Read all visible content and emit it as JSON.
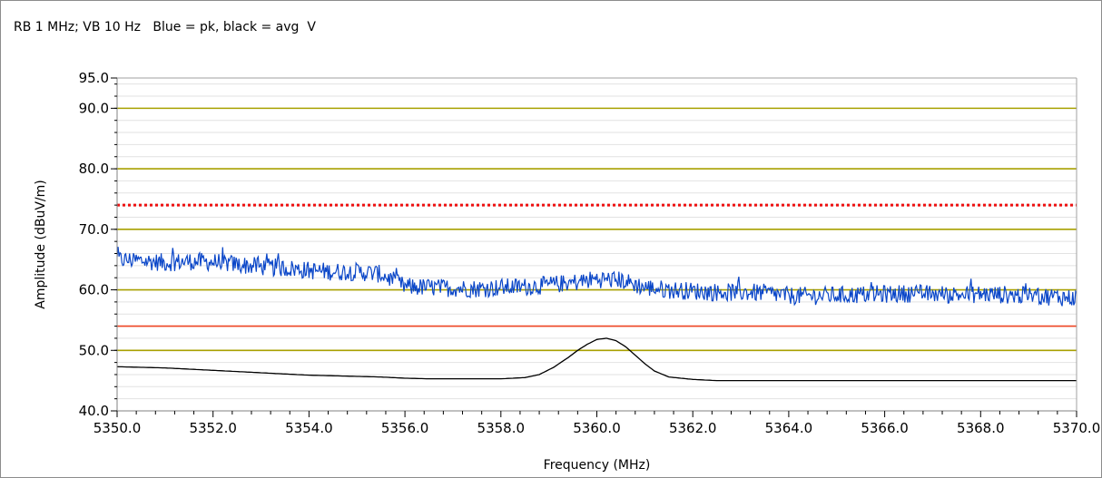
{
  "title": "RB 1 MHz; VB 10 Hz   Blue = pk, black = avg  V",
  "colors": {
    "peak": "#0a46c8",
    "average": "#000000",
    "grid_major": "#a8a000",
    "grid_minor": "#e2e2e2",
    "limit_peak": "#ee1111",
    "limit_avg": "#ee4422"
  },
  "chart_data": {
    "type": "line",
    "xlabel": "Frequency (MHz)",
    "ylabel": "Amplitude (dBuV/m)",
    "xlim": [
      5350.0,
      5370.0
    ],
    "ylim": [
      40.0,
      95.0
    ],
    "x_ticks": [
      "5350.0",
      "5352.0",
      "5354.0",
      "5356.0",
      "5358.0",
      "5360.0",
      "5362.0",
      "5364.0",
      "5366.0",
      "5368.0",
      "5370.0"
    ],
    "y_ticks": [
      "40.0",
      "50.0",
      "60.0",
      "70.0",
      "80.0",
      "90.0",
      "95.0"
    ],
    "reference_lines": [
      {
        "y": 74.0,
        "style": "dotted",
        "color": "#ee1111"
      },
      {
        "y": 54.0,
        "style": "solid",
        "color": "#ee4422"
      }
    ],
    "series": [
      {
        "color": "#0a46c8",
        "x": [
          5350.0,
          5350.5,
          5351.0,
          5351.5,
          5352.0,
          5352.5,
          5353.0,
          5353.5,
          5354.0,
          5354.5,
          5355.0,
          5355.5,
          5356.0,
          5356.5,
          5357.0,
          5357.5,
          5358.0,
          5358.5,
          5359.0,
          5359.5,
          5360.0,
          5360.5,
          5361.0,
          5361.5,
          5362.0,
          5362.5,
          5363.0,
          5363.5,
          5364.0,
          5364.5,
          5365.0,
          5365.5,
          5366.0,
          5366.5,
          5367.0,
          5367.5,
          5368.0,
          5368.5,
          5369.0,
          5369.5,
          5370.0
        ],
        "y": [
          65.0,
          64.8,
          64.5,
          64.7,
          64.6,
          64.2,
          63.8,
          63.6,
          63.2,
          63.0,
          63.0,
          62.6,
          60.5,
          60.4,
          60.3,
          60.2,
          60.4,
          60.5,
          60.8,
          61.2,
          61.8,
          61.6,
          60.4,
          60.0,
          59.8,
          59.6,
          59.6,
          59.5,
          59.0,
          59.0,
          59.1,
          59.2,
          59.3,
          59.4,
          59.3,
          59.2,
          59.3,
          59.2,
          59.0,
          58.9,
          58.6
        ],
        "noise_amplitude": 1.5
      },
      {
        "color": "#000000",
        "x": [
          5350.0,
          5350.5,
          5351.0,
          5351.5,
          5352.0,
          5352.5,
          5353.0,
          5353.5,
          5354.0,
          5354.5,
          5355.0,
          5355.5,
          5356.0,
          5356.5,
          5357.0,
          5357.5,
          5358.0,
          5358.5,
          5358.8,
          5359.1,
          5359.4,
          5359.6,
          5359.8,
          5360.0,
          5360.2,
          5360.4,
          5360.6,
          5360.8,
          5361.0,
          5361.2,
          5361.5,
          5362.0,
          5362.5,
          5363.0,
          5364.0,
          5365.0,
          5366.0,
          5367.0,
          5368.0,
          5369.0,
          5370.0
        ],
        "y": [
          47.3,
          47.2,
          47.1,
          46.9,
          46.7,
          46.5,
          46.3,
          46.1,
          45.9,
          45.8,
          45.7,
          45.6,
          45.4,
          45.3,
          45.3,
          45.3,
          45.3,
          45.5,
          46.0,
          47.2,
          48.8,
          50.0,
          51.0,
          51.8,
          52.0,
          51.6,
          50.6,
          49.2,
          47.8,
          46.6,
          45.6,
          45.2,
          45.0,
          45.0,
          45.0,
          45.0,
          45.0,
          45.0,
          45.0,
          45.0,
          45.0
        ]
      }
    ],
    "grid": true
  }
}
